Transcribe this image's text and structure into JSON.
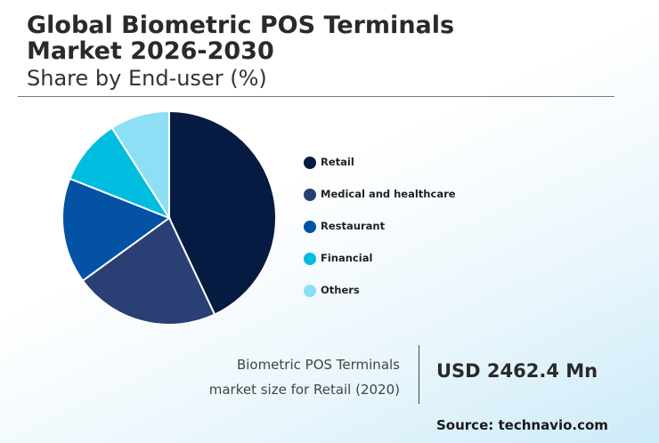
{
  "header": {
    "title_line1": "Global Biometric POS Terminals",
    "title_line2": "Market 2026-2030",
    "subtitle": "Share by End-user (%)"
  },
  "chart_data": {
    "type": "pie",
    "title": "Global Biometric POS Terminals Market 2026-2030",
    "subtitle": "Share by End-user (%)",
    "categories": [
      "Retail",
      "Medical and healthcare",
      "Restaurant",
      "Financial",
      "Others"
    ],
    "values": [
      43,
      22,
      16,
      10,
      9
    ],
    "colors": [
      "#061b42",
      "#2a3f73",
      "#0452a3",
      "#00bde0",
      "#8cdff4"
    ],
    "legend_position": "right"
  },
  "highlight": {
    "label_line1": "Biometric POS Terminals",
    "label_line2": "market size for Retail (2020)",
    "value": "USD 2462.4 Mn"
  },
  "source": "Source: technavio.com"
}
